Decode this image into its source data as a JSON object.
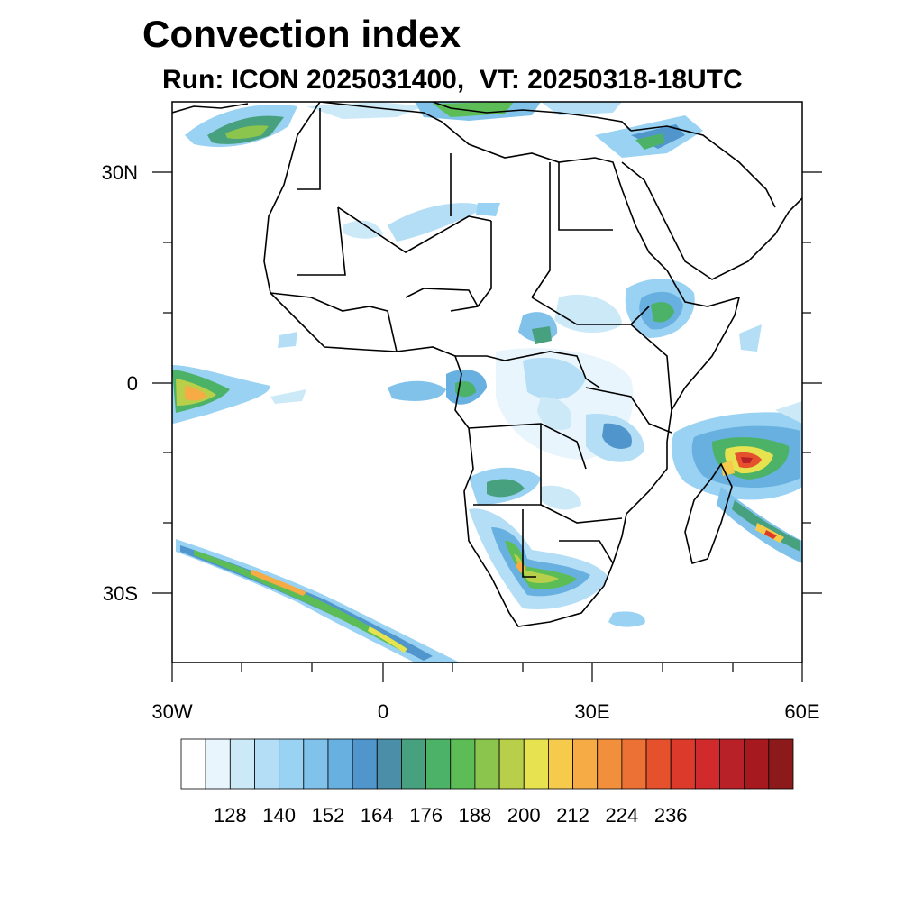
{
  "title": "Convection index",
  "subtitle": "Run: ICON 2025031400,  VT: 20250318-18UTC",
  "map": {
    "lon_range": [
      -30,
      60
    ],
    "lat_range": [
      -40,
      40
    ],
    "lat_ticks": [
      {
        "label": "30N",
        "lat": 30
      },
      {
        "label": "0",
        "lat": 0
      },
      {
        "label": "30S",
        "lat": -30
      }
    ],
    "lon_ticks": [
      {
        "label": "30W",
        "lon": -30
      },
      {
        "label": "0",
        "lon": 0
      },
      {
        "label": "30E",
        "lon": 30
      },
      {
        "label": "60E",
        "lon": 60
      }
    ]
  },
  "colorbar": {
    "labels": [
      "128",
      "140",
      "152",
      "164",
      "176",
      "188",
      "200",
      "212",
      "224",
      "236"
    ],
    "colors": [
      "#ffffff",
      "#e9f5fc",
      "#cce9f8",
      "#b3def5",
      "#99d2f2",
      "#80c2ea",
      "#67b0e0",
      "#5096cc",
      "#4b8ea8",
      "#47a07e",
      "#4bb267",
      "#5cbd57",
      "#8cc54d",
      "#b8cf4a",
      "#e7e250",
      "#f6cb4b",
      "#f6ab44",
      "#f28f3c",
      "#ec7134",
      "#e4512c",
      "#dc3a2b",
      "#d12a2c",
      "#b92129",
      "#a5191f",
      "#8c1a1a"
    ]
  },
  "colors": {
    "coast": "#000000",
    "background": "#ffffff"
  }
}
